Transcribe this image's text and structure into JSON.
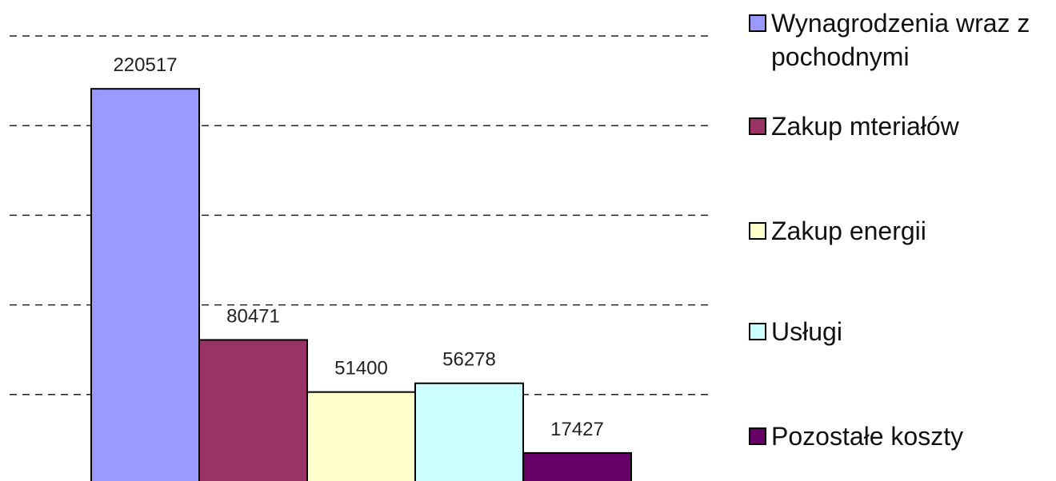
{
  "chart_data": {
    "type": "bar",
    "categories": [
      null
    ],
    "series": [
      {
        "name": "Wynagrodzenia wraz z pochodnymi",
        "color": "#9999ff",
        "values": [
          220517
        ]
      },
      {
        "name": "Zakup mteriałów",
        "color": "#993366",
        "values": [
          80471
        ]
      },
      {
        "name": "Zakup energii",
        "color": "#ffffcc",
        "values": [
          51400
        ]
      },
      {
        "name": "Usługi",
        "color": "#ccffff",
        "values": [
          56278
        ]
      },
      {
        "name": "Pozostałe koszty",
        "color": "#660066",
        "values": [
          17427
        ]
      }
    ],
    "ylim": [
      0,
      250000
    ],
    "yticks": [
      50000,
      100000,
      150000,
      200000,
      250000
    ],
    "grid": true
  }
}
